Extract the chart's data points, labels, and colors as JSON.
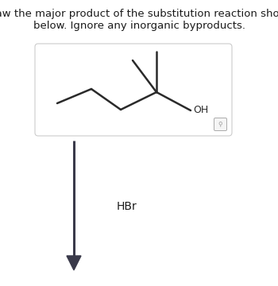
{
  "title_line1": "Draw the major product of the substitution reaction shown",
  "title_line2": "below. Ignore any inorganic byproducts.",
  "title_fontsize": 9.5,
  "title_color": "#1a1a1a",
  "background_color": "#ffffff",
  "molecule_color": "#2a2a2a",
  "reagent_text": "HBr",
  "reagent_fontsize": 10,
  "molecule_linewidth": 1.8,
  "arrow_color": "#3a3a4a",
  "oh_label": "OH",
  "oh_fontsize": 9,
  "box_edge_color": "#cccccc",
  "zoom_icon_color": "#aaaaaa"
}
